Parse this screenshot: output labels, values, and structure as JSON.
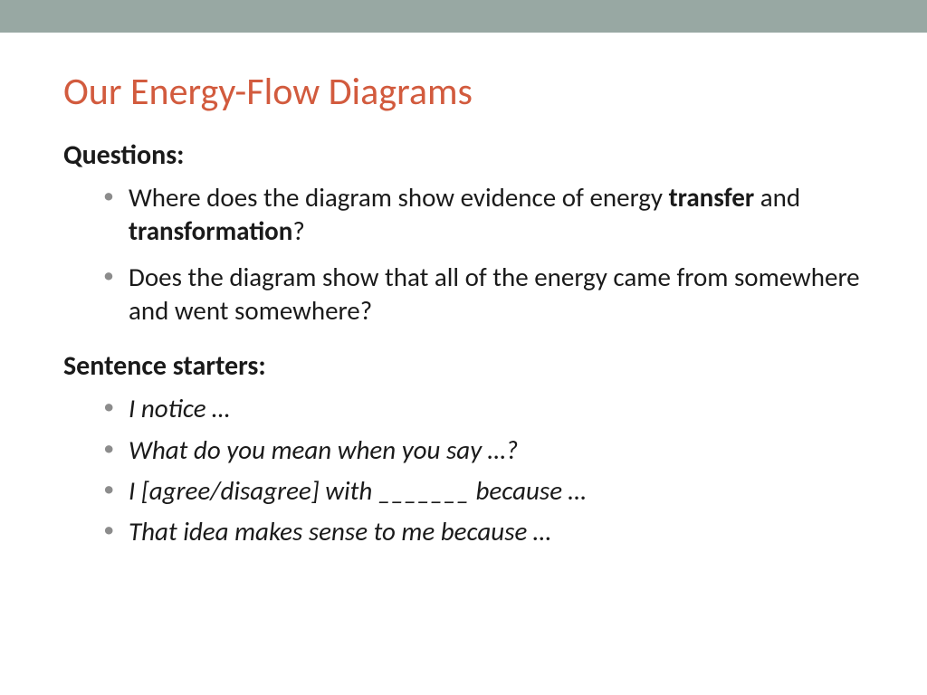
{
  "colors": {
    "top_bar": "#98a8a3",
    "title": "#d25b3e",
    "body_text": "#1a1a1a",
    "bullet_marker": "#8c8c8c",
    "background": "#ffffff"
  },
  "typography": {
    "title_fontsize": 42,
    "heading_fontsize": 30,
    "body_fontsize": 29,
    "font_family": "Calibri"
  },
  "title": "Our Energy-Flow Diagrams",
  "sections": {
    "questions": {
      "heading": "Questions:",
      "items": [
        {
          "pre": "Where does the diagram show evidence of energy ",
          "bold1": "transfer",
          "mid": " and ",
          "bold2": "transformation",
          "post": "?"
        },
        {
          "text": "Does the diagram show that all of the energy came from somewhere and went somewhere?"
        }
      ]
    },
    "starters": {
      "heading": "Sentence starters:",
      "items": [
        "I notice …",
        "What do you mean when you say …?",
        "I [agree/disagree] with _______ because …",
        "That idea makes sense to me because …"
      ]
    }
  }
}
